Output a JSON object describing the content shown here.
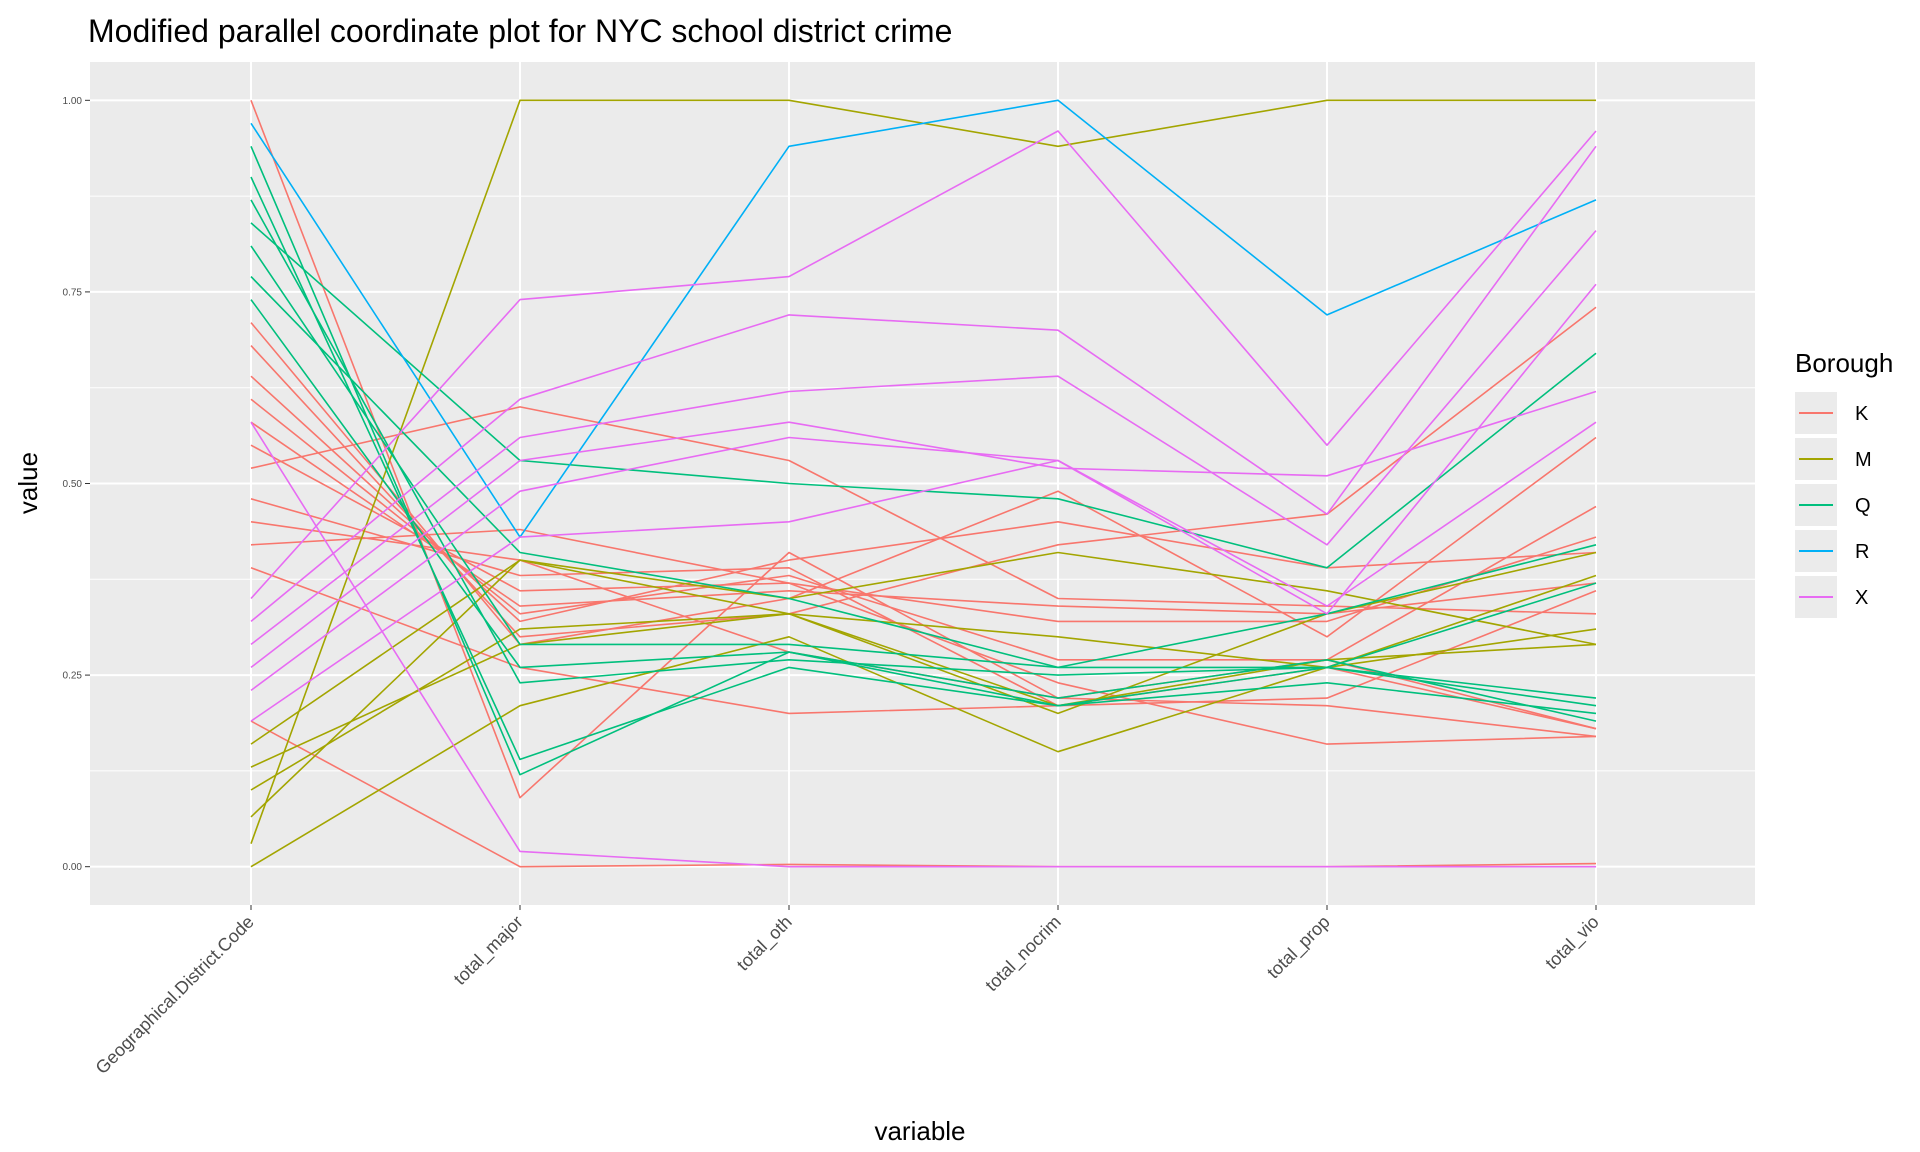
{
  "chart_data": {
    "type": "line",
    "title": "Modified parallel coordinate plot for NYC school district crime",
    "xlabel": "variable",
    "ylabel": "value",
    "categories": [
      "Geographical.District.Code",
      "total_major",
      "total_oth",
      "total_nocrim",
      "total_prop",
      "total_vio"
    ],
    "ylim": [
      -0.05,
      1.05
    ],
    "yticks": [
      "0.00",
      "0.25",
      "0.50",
      "0.75",
      "1.00"
    ],
    "ytick_values": [
      0,
      0.25,
      0.5,
      0.75,
      1.0
    ],
    "grid": true,
    "legend": {
      "title": "Borough",
      "position": "right",
      "entries": [
        {
          "label": "K",
          "color": "#F8766D"
        },
        {
          "label": "M",
          "color": "#A3A500"
        },
        {
          "label": "Q",
          "color": "#00BF7D"
        },
        {
          "label": "R",
          "color": "#00B0F6"
        },
        {
          "label": "X",
          "color": "#E76BF3"
        }
      ]
    },
    "series": [
      {
        "group": "K",
        "values": [
          1.0,
          0.09,
          0.41,
          0.22,
          0.27,
          0.18
        ]
      },
      {
        "group": "K",
        "values": [
          0.71,
          0.29,
          0.35,
          0.49,
          0.3,
          0.56
        ]
      },
      {
        "group": "K",
        "values": [
          0.68,
          0.3,
          0.33,
          0.42,
          0.46,
          0.73
        ]
      },
      {
        "group": "K",
        "values": [
          0.64,
          0.32,
          0.4,
          0.45,
          0.39,
          0.41
        ]
      },
      {
        "group": "K",
        "values": [
          0.61,
          0.33,
          0.38,
          0.27,
          0.27,
          0.47
        ]
      },
      {
        "group": "K",
        "values": [
          0.58,
          0.34,
          0.36,
          0.34,
          0.33,
          0.37
        ]
      },
      {
        "group": "K",
        "values": [
          0.55,
          0.36,
          0.37,
          0.32,
          0.32,
          0.43
        ]
      },
      {
        "group": "K",
        "values": [
          0.52,
          0.6,
          0.53,
          0.35,
          0.34,
          0.33
        ]
      },
      {
        "group": "K",
        "values": [
          0.48,
          0.38,
          0.39,
          0.21,
          0.26,
          0.18
        ]
      },
      {
        "group": "K",
        "values": [
          0.45,
          0.4,
          0.28,
          0.22,
          0.21,
          0.17
        ]
      },
      {
        "group": "K",
        "values": [
          0.42,
          0.44,
          0.37,
          0.24,
          0.16,
          0.17
        ]
      },
      {
        "group": "K",
        "values": [
          0.39,
          0.26,
          0.2,
          0.21,
          0.22,
          0.36
        ]
      },
      {
        "group": "K",
        "values": [
          0.19,
          0.0,
          0.003,
          0.0,
          0.0,
          0.004
        ]
      },
      {
        "group": "M",
        "values": [
          0.03,
          1.0,
          1.0,
          0.94,
          1.0,
          1.0
        ]
      },
      {
        "group": "M",
        "values": [
          0.0,
          0.21,
          0.3,
          0.15,
          0.26,
          0.31
        ]
      },
      {
        "group": "M",
        "values": [
          0.065,
          0.4,
          0.35,
          0.41,
          0.36,
          0.29
        ]
      },
      {
        "group": "M",
        "values": [
          0.1,
          0.31,
          0.33,
          0.3,
          0.26,
          0.38
        ]
      },
      {
        "group": "M",
        "values": [
          0.13,
          0.29,
          0.33,
          0.21,
          0.27,
          0.29
        ]
      },
      {
        "group": "M",
        "values": [
          0.16,
          0.4,
          0.33,
          0.2,
          0.33,
          0.41
        ]
      },
      {
        "group": "Q",
        "values": [
          0.94,
          0.12,
          0.28,
          0.22,
          0.27,
          0.19
        ]
      },
      {
        "group": "Q",
        "values": [
          0.9,
          0.14,
          0.26,
          0.21,
          0.24,
          0.2
        ]
      },
      {
        "group": "Q",
        "values": [
          0.87,
          0.24,
          0.27,
          0.25,
          0.26,
          0.22
        ]
      },
      {
        "group": "Q",
        "values": [
          0.84,
          0.53,
          0.5,
          0.48,
          0.39,
          0.67
        ]
      },
      {
        "group": "Q",
        "values": [
          0.81,
          0.29,
          0.29,
          0.26,
          0.26,
          0.21
        ]
      },
      {
        "group": "Q",
        "values": [
          0.77,
          0.41,
          0.35,
          0.26,
          0.33,
          0.42
        ]
      },
      {
        "group": "Q",
        "values": [
          0.74,
          0.26,
          0.28,
          0.21,
          0.26,
          0.37
        ]
      },
      {
        "group": "R",
        "values": [
          0.97,
          0.43,
          0.94,
          1.0,
          0.72,
          0.87
        ]
      },
      {
        "group": "X",
        "values": [
          0.58,
          0.02,
          0.0,
          0.0,
          0.0,
          0.0
        ]
      },
      {
        "group": "X",
        "values": [
          0.35,
          0.74,
          0.77,
          0.96,
          0.55,
          0.96
        ]
      },
      {
        "group": "X",
        "values": [
          0.32,
          0.61,
          0.72,
          0.7,
          0.46,
          0.94
        ]
      },
      {
        "group": "X",
        "values": [
          0.29,
          0.56,
          0.62,
          0.64,
          0.42,
          0.83
        ]
      },
      {
        "group": "X",
        "values": [
          0.26,
          0.53,
          0.58,
          0.52,
          0.51,
          0.62
        ]
      },
      {
        "group": "X",
        "values": [
          0.23,
          0.49,
          0.56,
          0.53,
          0.33,
          0.76
        ]
      },
      {
        "group": "X",
        "values": [
          0.19,
          0.43,
          0.45,
          0.53,
          0.34,
          0.58
        ]
      }
    ]
  }
}
